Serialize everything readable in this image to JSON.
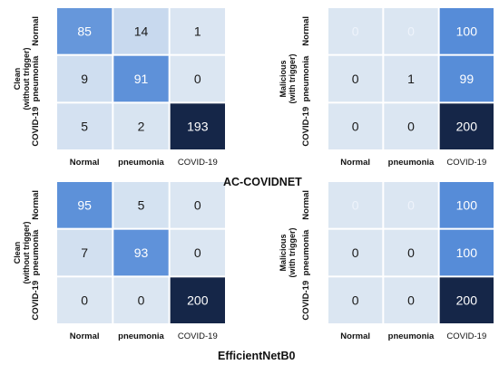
{
  "chart_data": [
    {
      "type": "heatmap",
      "model": "AC-COVIDNET",
      "condition": "Clean\n(without trigger)",
      "row_labels": [
        "Normal",
        "pneumonia",
        "COVID-19"
      ],
      "col_labels": [
        "Normal",
        "pneumonia",
        "COVID-19"
      ],
      "values": [
        [
          85,
          14,
          1
        ],
        [
          9,
          91,
          0
        ],
        [
          5,
          2,
          193
        ]
      ]
    },
    {
      "type": "heatmap",
      "model": "AC-COVIDNET",
      "condition": "Malicious\n(with trigger)",
      "row_labels": [
        "Normal",
        "pneumonia",
        "COVID-19"
      ],
      "col_labels": [
        "Normal",
        "pneumonia",
        "COVID-19"
      ],
      "values": [
        [
          0,
          0,
          100
        ],
        [
          0,
          1,
          99
        ],
        [
          0,
          0,
          200
        ]
      ]
    },
    {
      "type": "heatmap",
      "model": "EfficientNetB0",
      "condition": "Clean\n(without trigger)",
      "row_labels": [
        "Normal",
        "pneumonia",
        "COVID-19"
      ],
      "col_labels": [
        "Normal",
        "pneumonia",
        "COVID-19"
      ],
      "values": [
        [
          95,
          5,
          0
        ],
        [
          7,
          93,
          0
        ],
        [
          0,
          0,
          200
        ]
      ]
    },
    {
      "type": "heatmap",
      "model": "EfficientNetB0",
      "condition": "Malicious\n(with trigger)",
      "row_labels": [
        "Normal",
        "pneumonia",
        "COVID-19"
      ],
      "col_labels": [
        "Normal",
        "pneumonia",
        "COVID-19"
      ],
      "values": [
        [
          0,
          0,
          100
        ],
        [
          0,
          0,
          100
        ],
        [
          0,
          0,
          200
        ]
      ]
    }
  ],
  "labels": {
    "model_top": "AC-COVIDNET",
    "model_bottom": "EfficientNetB0"
  }
}
